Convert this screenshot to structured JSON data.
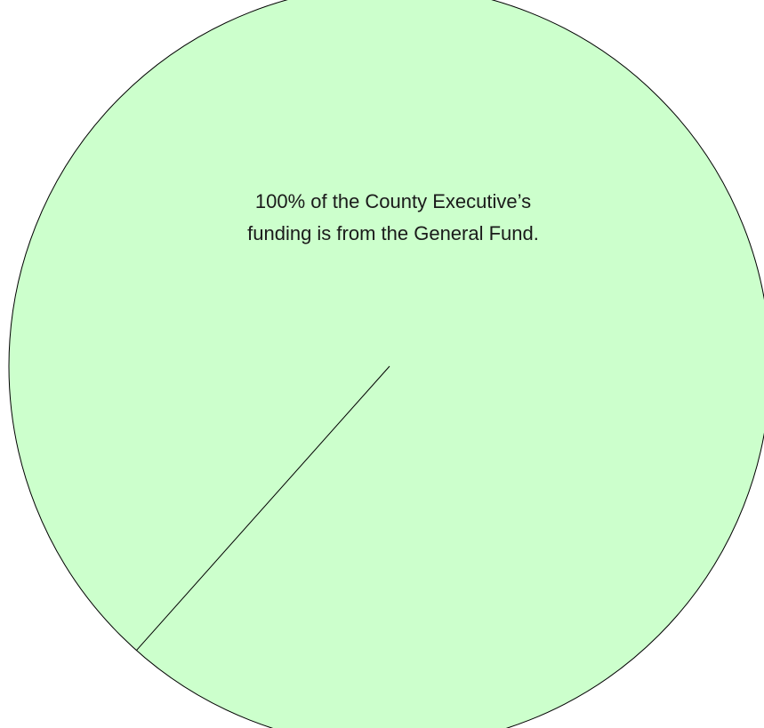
{
  "chart_data": {
    "type": "pie",
    "title": "",
    "slices": [
      {
        "label": "General Fund",
        "value": 100,
        "color": "#ccffcc"
      }
    ],
    "annotation": {
      "line1": "100% of the County Executive’s",
      "line2": "funding is from the General Fund."
    },
    "outline_color": "#000000"
  }
}
